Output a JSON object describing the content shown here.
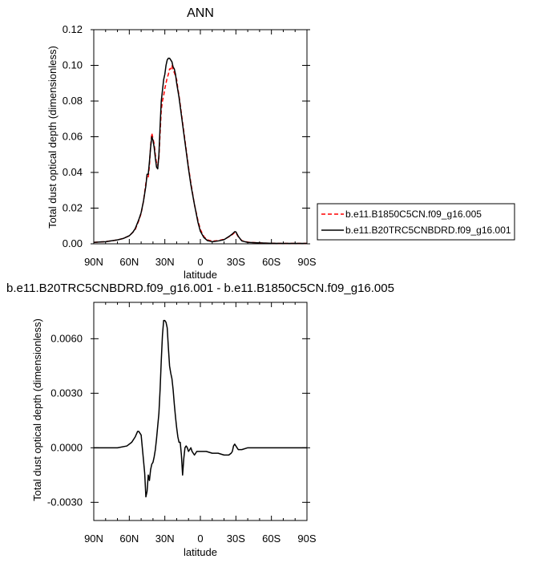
{
  "chart_data": [
    {
      "type": "line",
      "title": "ANN",
      "xlabel": "latitude",
      "ylabel": "Total dust optical depth (dimensionless)",
      "xlim": [
        90,
        -90
      ],
      "ylim": [
        0,
        0.12
      ],
      "x_ticks": [
        90,
        60,
        30,
        0,
        -30,
        -60,
        -90
      ],
      "x_tick_labels": [
        "90N",
        "60N",
        "30N",
        "0",
        "30S",
        "60S",
        "90S"
      ],
      "y_ticks": [
        0,
        0.02,
        0.04,
        0.06,
        0.08,
        0.1,
        0.12
      ],
      "y_tick_labels": [
        "0.00",
        "0.02",
        "0.04",
        "0.06",
        "0.08",
        "0.10",
        "0.12"
      ],
      "grid": false,
      "legend": "right",
      "series": [
        {
          "name": "b.e11.B1850C5CN.f09_g16.005",
          "color": "#ff0000",
          "dash": "dashed",
          "x": [
            90,
            80,
            70,
            65,
            60,
            57,
            55,
            52,
            50,
            48,
            46,
            45,
            44,
            43,
            42,
            41,
            40,
            39,
            38,
            37,
            36,
            35,
            34,
            33,
            32,
            31,
            30,
            29,
            28,
            27,
            26,
            25,
            24,
            23,
            22,
            21,
            20,
            19,
            18,
            17,
            16,
            15,
            14,
            12,
            10,
            8,
            5,
            2,
            0,
            -3,
            -6,
            -10,
            -15,
            -20,
            -25,
            -27,
            -29,
            -30,
            -32,
            -35,
            -40,
            -50,
            -60,
            -70,
            -80,
            -90
          ],
          "y": [
            0.0008,
            0.0012,
            0.0022,
            0.003,
            0.0045,
            0.0065,
            0.008,
            0.013,
            0.017,
            0.024,
            0.034,
            0.038,
            0.037,
            0.044,
            0.055,
            0.062,
            0.059,
            0.056,
            0.05,
            0.045,
            0.044,
            0.048,
            0.062,
            0.075,
            0.08,
            0.083,
            0.087,
            0.09,
            0.093,
            0.095,
            0.098,
            0.098,
            0.1,
            0.097,
            0.096,
            0.094,
            0.092,
            0.087,
            0.083,
            0.078,
            0.073,
            0.068,
            0.063,
            0.053,
            0.043,
            0.034,
            0.022,
            0.013,
            0.008,
            0.004,
            0.0022,
            0.0015,
            0.0018,
            0.0025,
            0.0042,
            0.0052,
            0.0063,
            0.0062,
            0.004,
            0.0018,
            0.0009,
            0.0005,
            0.0003,
            0.0002,
            0.0002,
            0.0002
          ]
        },
        {
          "name": "b.e11.B20TRC5CNBDRD.f09_g16.001",
          "color": "#000000",
          "dash": "solid",
          "x": [
            90,
            80,
            70,
            65,
            60,
            57,
            55,
            52,
            50,
            48,
            46,
            45,
            44,
            43,
            42,
            41,
            40,
            39,
            38,
            37,
            36,
            35,
            34,
            33,
            32,
            31,
            30,
            29,
            28,
            27,
            26,
            25,
            24,
            23,
            22,
            21,
            20,
            19,
            18,
            17,
            16,
            15,
            14,
            12,
            10,
            8,
            5,
            2,
            0,
            -3,
            -6,
            -10,
            -15,
            -20,
            -25,
            -27,
            -29,
            -30,
            -32,
            -35,
            -40,
            -50,
            -60,
            -70,
            -80,
            -90
          ],
          "y": [
            0.0008,
            0.0012,
            0.0022,
            0.003,
            0.0045,
            0.0065,
            0.0085,
            0.0135,
            0.0175,
            0.024,
            0.0325,
            0.039,
            0.039,
            0.046,
            0.054,
            0.06,
            0.058,
            0.054,
            0.048,
            0.043,
            0.042,
            0.05,
            0.066,
            0.08,
            0.086,
            0.092,
            0.095,
            0.1,
            0.103,
            0.104,
            0.104,
            0.103,
            0.102,
            0.099,
            0.098,
            0.095,
            0.09,
            0.086,
            0.082,
            0.077,
            0.072,
            0.067,
            0.062,
            0.052,
            0.042,
            0.033,
            0.022,
            0.012,
            0.007,
            0.0035,
            0.0018,
            0.0012,
            0.0016,
            0.0023,
            0.0045,
            0.0055,
            0.0068,
            0.0067,
            0.0042,
            0.0016,
            0.0008,
            0.0005,
            0.0003,
            0.0002,
            0.0002,
            0.0002
          ]
        }
      ]
    },
    {
      "type": "line",
      "title": "b.e11.B20TRC5CNBDRD.f09_g16.001 - b.e11.B1850C5CN.f09_g16.005",
      "xlabel": "latitude",
      "ylabel": "Total dust optical depth (dimensionless)",
      "xlim": [
        90,
        -90
      ],
      "ylim": [
        -0.004,
        0.008
      ],
      "x_ticks": [
        90,
        60,
        30,
        0,
        -30,
        -60,
        -90
      ],
      "x_tick_labels": [
        "90N",
        "60N",
        "30N",
        "0",
        "30S",
        "60S",
        "90S"
      ],
      "y_ticks": [
        -0.003,
        0.0,
        0.003,
        0.006
      ],
      "y_tick_labels": [
        "-0.0030",
        "0.0000",
        "0.0030",
        "0.0060"
      ],
      "grid": false,
      "series": [
        {
          "color": "#000000",
          "dash": "solid",
          "x": [
            90,
            80,
            70,
            62,
            58,
            55,
            53,
            52,
            51,
            50,
            49,
            48,
            47,
            46,
            45,
            44,
            43,
            42,
            41,
            40,
            39,
            38,
            37,
            36,
            35,
            34,
            33,
            32,
            31,
            30,
            29,
            28,
            27,
            26,
            25,
            24,
            23,
            22,
            21,
            20,
            19,
            18,
            17,
            16,
            15,
            14,
            13,
            12,
            11,
            10,
            9,
            8,
            7,
            5,
            3,
            0,
            -5,
            -10,
            -15,
            -20,
            -24,
            -26,
            -27,
            -28,
            -29,
            -30,
            -32,
            -35,
            -40,
            -50,
            -60,
            -70,
            -80,
            -90
          ],
          "y": [
            0.0,
            0.0,
            0.0,
            0.0001,
            0.0003,
            0.0006,
            0.0009,
            0.0009,
            0.0008,
            0.0007,
            0.0,
            -0.0007,
            -0.0014,
            -0.0027,
            -0.0024,
            -0.0015,
            -0.0018,
            -0.0012,
            -0.0009,
            -0.0008,
            -0.0005,
            -0.0001,
            0.0005,
            0.0012,
            0.0019,
            0.0032,
            0.0048,
            0.0062,
            0.007,
            0.007,
            0.0069,
            0.0066,
            0.0055,
            0.0045,
            0.0041,
            0.0038,
            0.0032,
            0.0024,
            0.0017,
            0.0011,
            0.0006,
            0.0003,
            0.0003,
            -0.0004,
            -0.0015,
            -0.0006,
            0.0,
            0.0001,
            0.0,
            -0.0002,
            -0.0001,
            0.0,
            -0.0002,
            -0.0004,
            -0.0002,
            -0.0002,
            -0.0002,
            -0.0003,
            -0.0003,
            -0.0004,
            -0.0004,
            -0.0003,
            -0.0002,
            0.0001,
            0.0002,
            0.0001,
            -0.0001,
            -0.0001,
            0.0,
            0.0,
            0.0,
            0.0,
            0.0,
            0.0
          ]
        }
      ]
    }
  ]
}
